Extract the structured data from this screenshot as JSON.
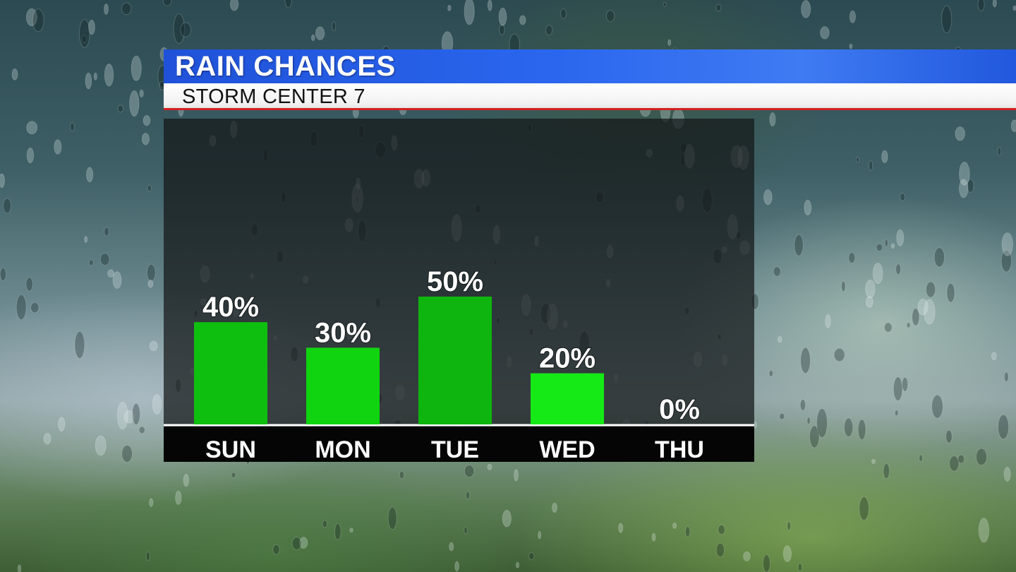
{
  "header": {
    "title": "RAIN CHANCES",
    "subtitle": "STORM CENTER 7"
  },
  "colors": {
    "title_bar": "#2a66ee",
    "subtitle_underline": "#d42020",
    "bar_fills": [
      "#0fbf0f",
      "#10d410",
      "#0fb50f",
      "#16ea16",
      "#22ff22"
    ]
  },
  "chart_data": {
    "type": "bar",
    "categories": [
      "SUN",
      "MON",
      "TUE",
      "WED",
      "THU"
    ],
    "values": [
      40,
      30,
      50,
      20,
      0
    ],
    "value_labels": [
      "40%",
      "30%",
      "50%",
      "20%",
      "0%"
    ],
    "ylim": [
      0,
      100
    ],
    "grid": false
  }
}
